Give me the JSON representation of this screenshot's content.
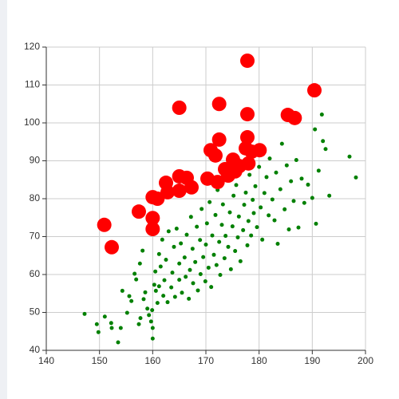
{
  "chart_data": {
    "type": "scatter",
    "xlim": [
      140,
      200
    ],
    "xticks": [
      140,
      150,
      160,
      170,
      180,
      190,
      200
    ],
    "ylim": [
      40,
      120
    ],
    "yticks": [
      40,
      50,
      60,
      70,
      80,
      90,
      100,
      110,
      120
    ],
    "grid": true,
    "series": [
      {
        "color": "#008000",
        "x": [
          147.2,
          149.5,
          149.8,
          151,
          152.2,
          152.3,
          153.5,
          154,
          154.3,
          155.6,
          155.2,
          156,
          156.6,
          156.9,
          157.4,
          157.7,
          157.6,
          158.1,
          158.3,
          158.6,
          159,
          159.3,
          159.7,
          159.9,
          160,
          160,
          160.3,
          160.5,
          160.6,
          160.9,
          161.2,
          161.2,
          161.5,
          161.8,
          162,
          162.2,
          162.5,
          162.8,
          163,
          163.5,
          163.7,
          164,
          164.2,
          164.5,
          165,
          165,
          165.3,
          165.5,
          166,
          166.2,
          166.4,
          166.8,
          167,
          167.2,
          167.5,
          167.6,
          168,
          168.3,
          168.5,
          168.9,
          169,
          169.2,
          169.5,
          169.9,
          170,
          170.2,
          170.5,
          170.7,
          171,
          171.2,
          171.5,
          171.8,
          172,
          172.2,
          172.5,
          172.7,
          173,
          173.2,
          173.5,
          173.7,
          174,
          174.2,
          174.5,
          174.7,
          175,
          175.2,
          175.5,
          175.7,
          176,
          176.2,
          176.5,
          176.7,
          177,
          177.2,
          177.5,
          177.8,
          178,
          178.2,
          178.5,
          178.8,
          179,
          179.3,
          179.6,
          180,
          180.3,
          180.6,
          181,
          181.4,
          181.8,
          182,
          182.5,
          182.9,
          183.2,
          183.5,
          184,
          184.3,
          184.8,
          185.2,
          185.6,
          186,
          186.5,
          187,
          187.4,
          188,
          188.5,
          189.2,
          190,
          190.5,
          190.7,
          191.2,
          191.8,
          192,
          192.5,
          193.2,
          197,
          198.2
        ],
        "values": [
          49.6,
          46.9,
          44.8,
          48.9,
          47.2,
          45.9,
          42.1,
          45.9,
          55.7,
          54.3,
          49.9,
          53,
          60.2,
          58.7,
          46.9,
          48.5,
          62.9,
          66.3,
          53.5,
          55.3,
          51,
          49.3,
          47.6,
          50.6,
          45.9,
          43.1,
          57.3,
          60.8,
          55.7,
          52.5,
          56.9,
          65.4,
          62.1,
          69.2,
          54.4,
          58.5,
          63.9,
          52.7,
          71.4,
          56.6,
          60.5,
          67.3,
          54.1,
          72.1,
          58.6,
          62.9,
          68.2,
          55.2,
          64.5,
          59.4,
          70.5,
          53.6,
          61.2,
          75.2,
          66.8,
          57.7,
          63.3,
          72.6,
          55.8,
          69.1,
          60.1,
          77.3,
          64.6,
          58.2,
          67.9,
          73.5,
          61.8,
          79.1,
          56.7,
          70.3,
          65.2,
          75.7,
          62.5,
          82.3,
          68.6,
          59.9,
          73.1,
          78.5,
          64.3,
          70.2,
          85.1,
          67.3,
          76.4,
          61.4,
          72.7,
          80.8,
          66.2,
          83.6,
          69.8,
          75.3,
          63.5,
          87.9,
          71.7,
          78.4,
          81.6,
          67.7,
          74.1,
          86.3,
          70.3,
          79.7,
          76.2,
          83.3,
          72.5,
          88.4,
          77.7,
          69.2,
          81.5,
          85.7,
          75.6,
          90.6,
          79.8,
          74.3,
          86.9,
          68.1,
          82.5,
          94.5,
          77.2,
          88.8,
          71.9,
          84.6,
          79.4,
          90.2,
          72.4,
          85.3,
          78.9,
          83.7,
          80.2,
          98.3,
          73.4,
          87.4,
          102.2,
          95.2,
          93.1,
          80.8,
          91.1,
          85.6
        ]
      },
      {
        "color": "#ff0000",
        "x": [
          150.9,
          152.3,
          157.4,
          160,
          160,
          160,
          160.9,
          162.5,
          162.8,
          165,
          165,
          165,
          166.4,
          167.3,
          170.3,
          170.9,
          171.8,
          172.5,
          172.5,
          172.2,
          173.6,
          174.2,
          175.1,
          175.5,
          176.3,
          177.5,
          177.8,
          177.8,
          177.8,
          178.6,
          180.1,
          185.4,
          186.7,
          190.4,
          178
        ],
        "values": [
          73.1,
          67.2,
          76.6,
          72,
          74.9,
          80.4,
          80,
          84.2,
          81.7,
          82.1,
          85.9,
          104,
          85.5,
          83,
          85.3,
          92.8,
          91.4,
          105,
          95.6,
          84.4,
          87.8,
          86.1,
          90.3,
          87.2,
          88.6,
          93.3,
          96.2,
          116.4,
          102.3,
          92.4,
          92.8,
          102.1,
          101.3,
          108.6,
          89.3
        ]
      }
    ]
  }
}
